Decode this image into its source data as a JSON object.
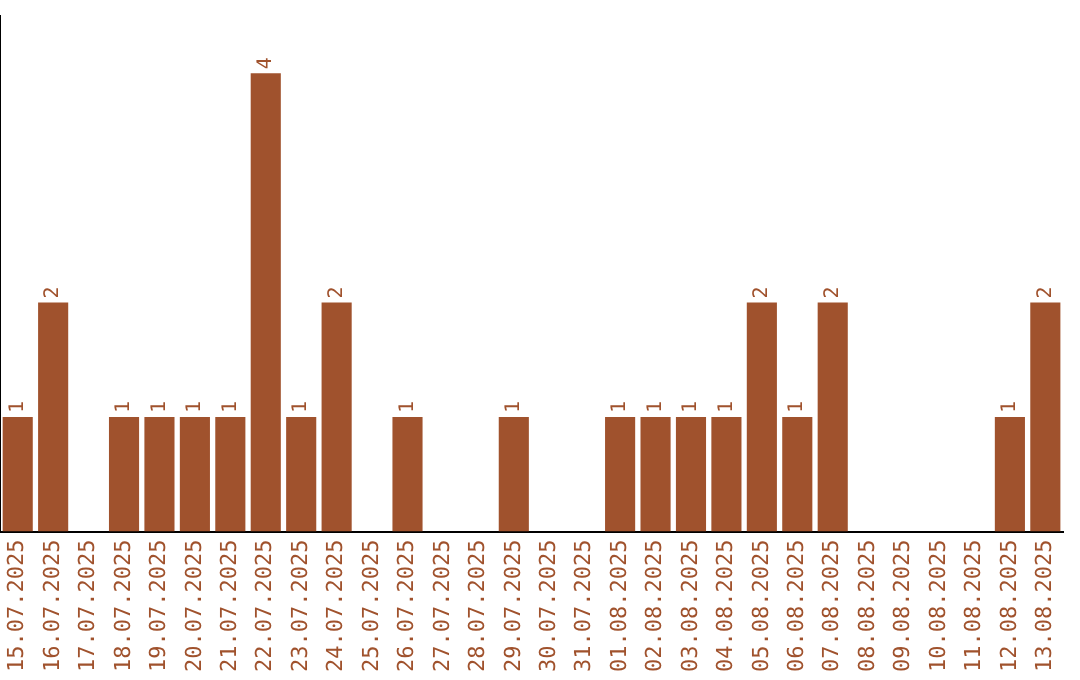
{
  "chart_data": {
    "type": "bar",
    "categories": [
      "15.07.2025",
      "16.07.2025",
      "17.07.2025",
      "18.07.2025",
      "19.07.2025",
      "20.07.2025",
      "21.07.2025",
      "22.07.2025",
      "23.07.2025",
      "24.07.2025",
      "25.07.2025",
      "26.07.2025",
      "27.07.2025",
      "28.07.2025",
      "29.07.2025",
      "30.07.2025",
      "31.07.2025",
      "01.08.2025",
      "02.08.2025",
      "03.08.2025",
      "04.08.2025",
      "05.08.2025",
      "06.08.2025",
      "07.08.2025",
      "08.08.2025",
      "09.08.2025",
      "10.08.2025",
      "11.08.2025",
      "12.08.2025",
      "13.08.2025"
    ],
    "values": [
      1,
      2,
      0,
      1,
      1,
      1,
      1,
      4,
      1,
      2,
      0,
      1,
      0,
      0,
      1,
      0,
      0,
      1,
      1,
      1,
      1,
      2,
      1,
      2,
      0,
      0,
      0,
      0,
      1,
      2
    ],
    "value_labels": [
      "1",
      "2",
      null,
      "1",
      "1",
      "1",
      "1",
      "4",
      "1",
      "2",
      null,
      "1",
      null,
      null,
      "1",
      null,
      null,
      "1",
      "1",
      "1",
      "1",
      "2",
      "1",
      "2",
      null,
      null,
      null,
      null,
      "1",
      "2"
    ],
    "color": "#a0522d",
    "grid": false,
    "legend": false,
    "tick_labels": "x"
  }
}
